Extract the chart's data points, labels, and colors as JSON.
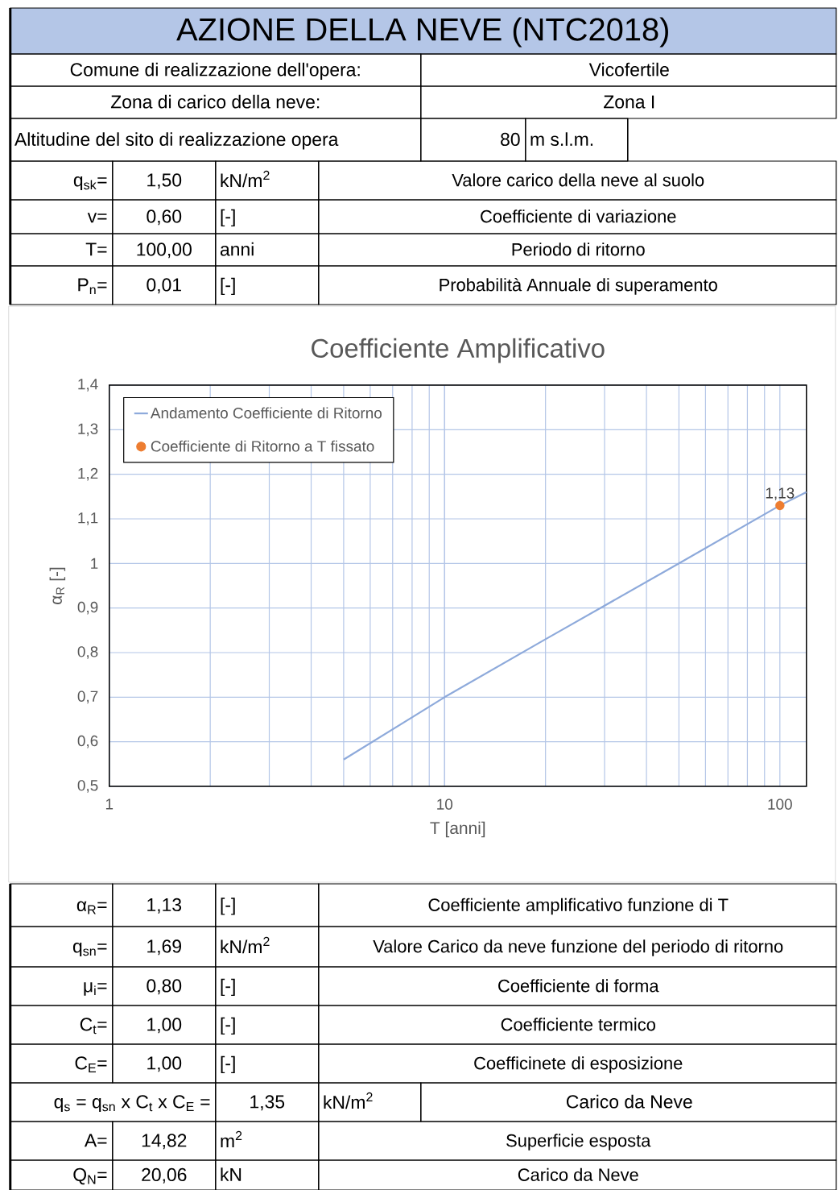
{
  "chart_data": [
    {
      "type": "other",
      "title": "AZIONE DELLA NEVE (NTC2018)",
      "annotations": [
        "Comune di realizzazione dell'opera:",
        "Vicofertile",
        "Zona di carico della neve:",
        "Zona I",
        "Altitudine del sito di realizzazione opera",
        "80",
        "m s.l.m.",
        "q$_{sk}$=",
        "1,50",
        "kN/m$^{2}$",
        "Valore carico della neve al suolo",
        "v=",
        "0,60",
        "[-]",
        "Coefficiente di variazione",
        "T=",
        "100,00",
        "anni",
        "Periodo di ritorno",
        "P$_{n}$=",
        "0,01",
        "[-]",
        "Probabilità Annuale di superamento"
      ]
    },
    {
      "type": "line",
      "title": "Coefficiente Amplificativo",
      "xlabel": "T [anni]",
      "ylabel": "α$_{R}$ [-]",
      "log": "x",
      "xlim": [
        1,
        120
      ],
      "ylim": [
        0.5,
        1.4
      ],
      "xticks": [
        1,
        10,
        100
      ],
      "yticks": [
        {
          "value": 0.5,
          "label": "0,5"
        },
        {
          "value": 0.6,
          "label": "0,6"
        },
        {
          "value": 0.7,
          "label": "0,7"
        },
        {
          "value": 0.8,
          "label": "0,8"
        },
        {
          "value": 0.9,
          "label": "0,9"
        },
        1,
        {
          "value": 1.1,
          "label": "1,1"
        },
        {
          "value": 1.2,
          "label": "1,2"
        },
        {
          "value": 1.3,
          "label": "1,3"
        },
        {
          "value": 1.4,
          "label": "1,4"
        }
      ],
      "grid": true,
      "legend": "top left",
      "series": [
        {
          "name": "Andamento Coefficiente di Ritorno",
          "type": "line",
          "color": "#8eaadb",
          "marker": "none",
          "x": [
            5,
            10,
            20,
            50,
            100,
            120
          ],
          "values": [
            0.56,
            0.7,
            0.83,
            1.0,
            1.13,
            1.16
          ]
        },
        {
          "name": "Coefficiente di Ritorno a T fissato",
          "type": "scatter",
          "color": "#ed7d31",
          "marker": "circle",
          "x": [
            100
          ],
          "values": [
            1.13
          ],
          "value_labels": [
            "1,13"
          ]
        }
      ]
    },
    {
      "type": "other",
      "annotations": [
        "α$_{R}$=",
        "1,13",
        "[-]",
        "Coefficiente amplificativo funzione di T",
        "q$_{sn}$=",
        "1,69",
        "kN/m$^{2}$",
        "Valore Carico da neve funzione del periodo di ritorno",
        "μ$_{i}$=",
        "0,80",
        "[-]",
        "Coefficiente di forma",
        "C$_{t}$=",
        "1,00",
        "[-]",
        "Coefficiente termico",
        "C$_{E}$=",
        "1,00",
        "[-]",
        "Coefficinete di esposizione",
        "q$_{s}$ = q$_{sn}$ x C$_{t}$ x C$_{E}$ =",
        "1,35",
        "kN/m$^{2}$",
        "Carico da Neve",
        "A=",
        "14,82",
        "m$^{2}$",
        "Superficie esposta",
        "Q$_{N}$=",
        "20,06",
        "kN",
        "Carico da Neve"
      ]
    }
  ]
}
